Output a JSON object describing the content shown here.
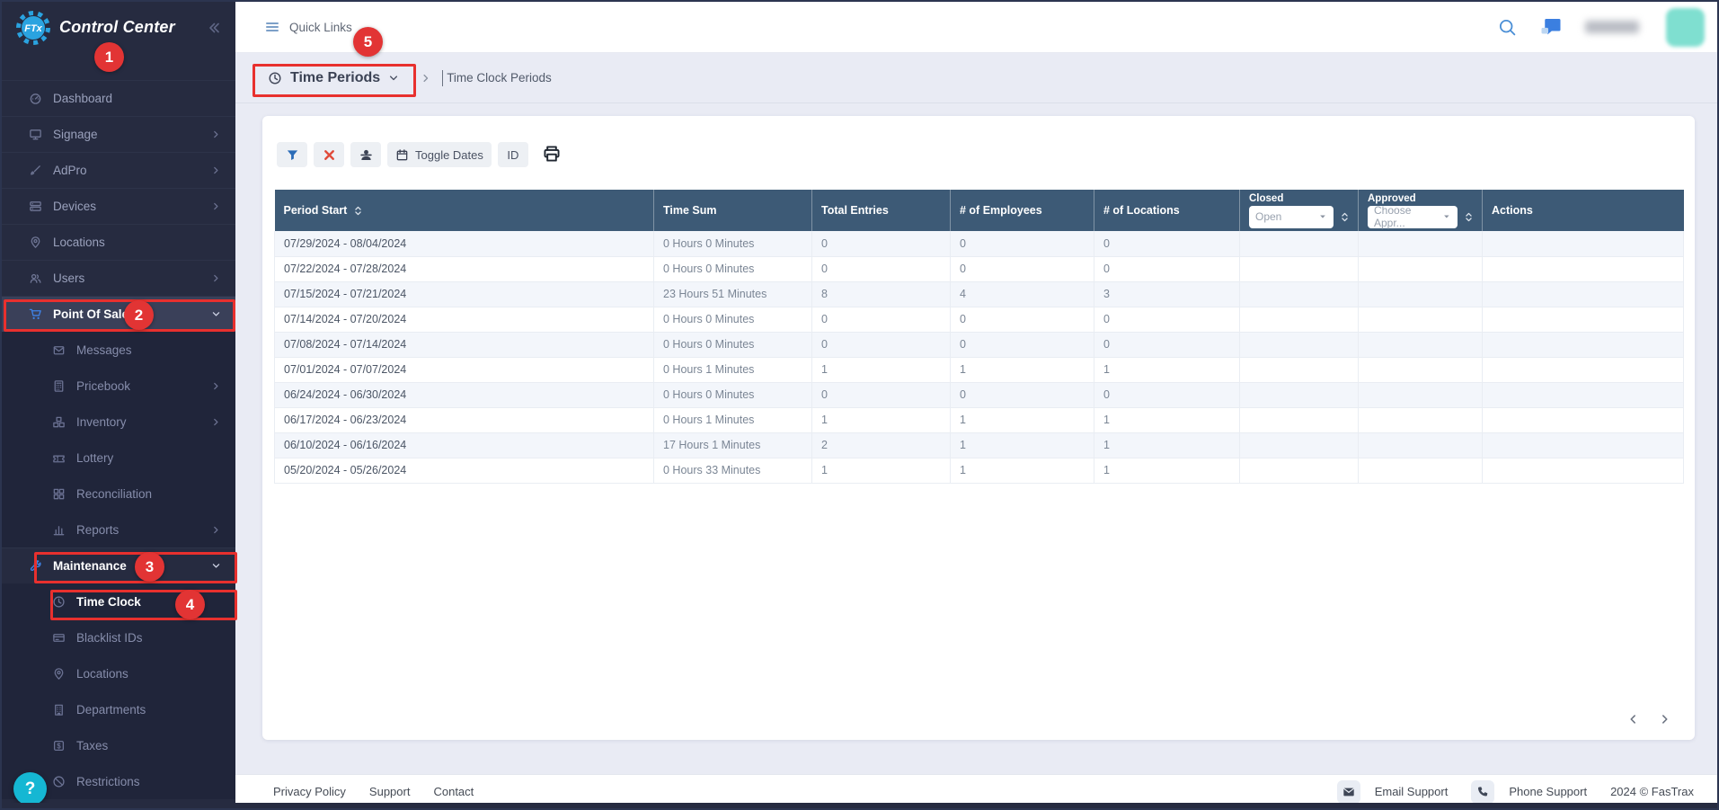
{
  "brand": {
    "name": "Control Center",
    "logo_badge": "FTx"
  },
  "topbar": {
    "quick_links_label": "Quick Links"
  },
  "breadcrumb": {
    "section_label": "Time Periods",
    "page_title": "Time Clock Periods"
  },
  "toolbar": {
    "toggle_dates_label": "Toggle Dates",
    "id_label": "ID"
  },
  "sidebar": {
    "items": [
      {
        "label": "Dashboard",
        "icon": "dashboard-icon"
      },
      {
        "label": "Signage",
        "icon": "signage-icon",
        "chevron": "right"
      },
      {
        "label": "AdPro",
        "icon": "adpro-icon",
        "chevron": "right"
      },
      {
        "label": "Devices",
        "icon": "devices-icon",
        "chevron": "right"
      },
      {
        "label": "Locations",
        "icon": "location-icon"
      },
      {
        "label": "Users",
        "icon": "users-icon",
        "chevron": "right"
      },
      {
        "label": "Point Of Sale",
        "icon": "cart-icon",
        "chevron": "down",
        "active": true,
        "highlight": true
      },
      {
        "label": "Messages",
        "icon": "messages-icon",
        "level": 2
      },
      {
        "label": "Pricebook",
        "icon": "pricebook-icon",
        "chevron": "right",
        "level": 2
      },
      {
        "label": "Inventory",
        "icon": "inventory-icon",
        "chevron": "right",
        "level": 2
      },
      {
        "label": "Lottery",
        "icon": "lottery-icon",
        "level": 2
      },
      {
        "label": "Reconciliation",
        "icon": "reconciliation-icon",
        "level": 2
      },
      {
        "label": "Reports",
        "icon": "reports-icon",
        "chevron": "right",
        "level": 2
      },
      {
        "label": "Maintenance",
        "icon": "maintenance-icon",
        "chevron": "down",
        "active": true
      },
      {
        "label": "Time Clock",
        "icon": "time-clock-icon",
        "level": 2,
        "active": true
      },
      {
        "label": "Blacklist IDs",
        "icon": "blacklist-icon",
        "level": 2
      },
      {
        "label": "Locations",
        "icon": "location-icon",
        "level": 2
      },
      {
        "label": "Departments",
        "icon": "departments-icon",
        "level": 2
      },
      {
        "label": "Taxes",
        "icon": "taxes-icon",
        "level": 2
      },
      {
        "label": "Restrictions",
        "icon": "restrictions-icon",
        "level": 2
      }
    ],
    "help_label": "?"
  },
  "table": {
    "columns": [
      "Period Start",
      "Time Sum",
      "Total Entries",
      "# of Employees",
      "# of Locations",
      "Closed",
      "Approved",
      "Actions"
    ],
    "closed_filter": {
      "label": "Closed",
      "value": "Open"
    },
    "approved_filter": {
      "label": "Approved",
      "value": "Choose Appr..."
    },
    "rows": [
      {
        "period_start": "07/29/2024 - 08/04/2024",
        "time_sum": "0 Hours 0 Minutes",
        "total_entries": "0",
        "employees": "0",
        "locations": "0"
      },
      {
        "period_start": "07/22/2024 - 07/28/2024",
        "time_sum": "0 Hours 0 Minutes",
        "total_entries": "0",
        "employees": "0",
        "locations": "0"
      },
      {
        "period_start": "07/15/2024 - 07/21/2024",
        "time_sum": "23 Hours 51 Minutes",
        "total_entries": "8",
        "employees": "4",
        "locations": "3"
      },
      {
        "period_start": "07/14/2024 - 07/20/2024",
        "time_sum": "0 Hours 0 Minutes",
        "total_entries": "0",
        "employees": "0",
        "locations": "0"
      },
      {
        "period_start": "07/08/2024 - 07/14/2024",
        "time_sum": "0 Hours 0 Minutes",
        "total_entries": "0",
        "employees": "0",
        "locations": "0"
      },
      {
        "period_start": "07/01/2024 - 07/07/2024",
        "time_sum": "0 Hours 1 Minutes",
        "total_entries": "1",
        "employees": "1",
        "locations": "1"
      },
      {
        "period_start": "06/24/2024 - 06/30/2024",
        "time_sum": "0 Hours 0 Minutes",
        "total_entries": "0",
        "employees": "0",
        "locations": "0"
      },
      {
        "period_start": "06/17/2024 - 06/23/2024",
        "time_sum": "0 Hours 1 Minutes",
        "total_entries": "1",
        "employees": "1",
        "locations": "1"
      },
      {
        "period_start": "06/10/2024 - 06/16/2024",
        "time_sum": "17 Hours 1 Minutes",
        "total_entries": "2",
        "employees": "1",
        "locations": "1"
      },
      {
        "period_start": "05/20/2024 - 05/26/2024",
        "time_sum": "0 Hours 33 Minutes",
        "total_entries": "1",
        "employees": "1",
        "locations": "1"
      }
    ]
  },
  "footer": {
    "links": [
      "Privacy Policy",
      "Support",
      "Contact"
    ],
    "email_support_label": "Email Support",
    "phone_support_label": "Phone Support",
    "copyright": "2024 © FasTrax"
  },
  "annotations": {
    "callouts": [
      "1",
      "2",
      "3",
      "4",
      "5"
    ]
  },
  "colors": {
    "sidebar_bg": "#262b40",
    "accent_blue": "#3f83e8",
    "table_header_bg": "#3d5a76",
    "annotation_red": "#e8302e",
    "help_teal": "#15b7d3",
    "avatar_teal": "#7fdfd0"
  }
}
